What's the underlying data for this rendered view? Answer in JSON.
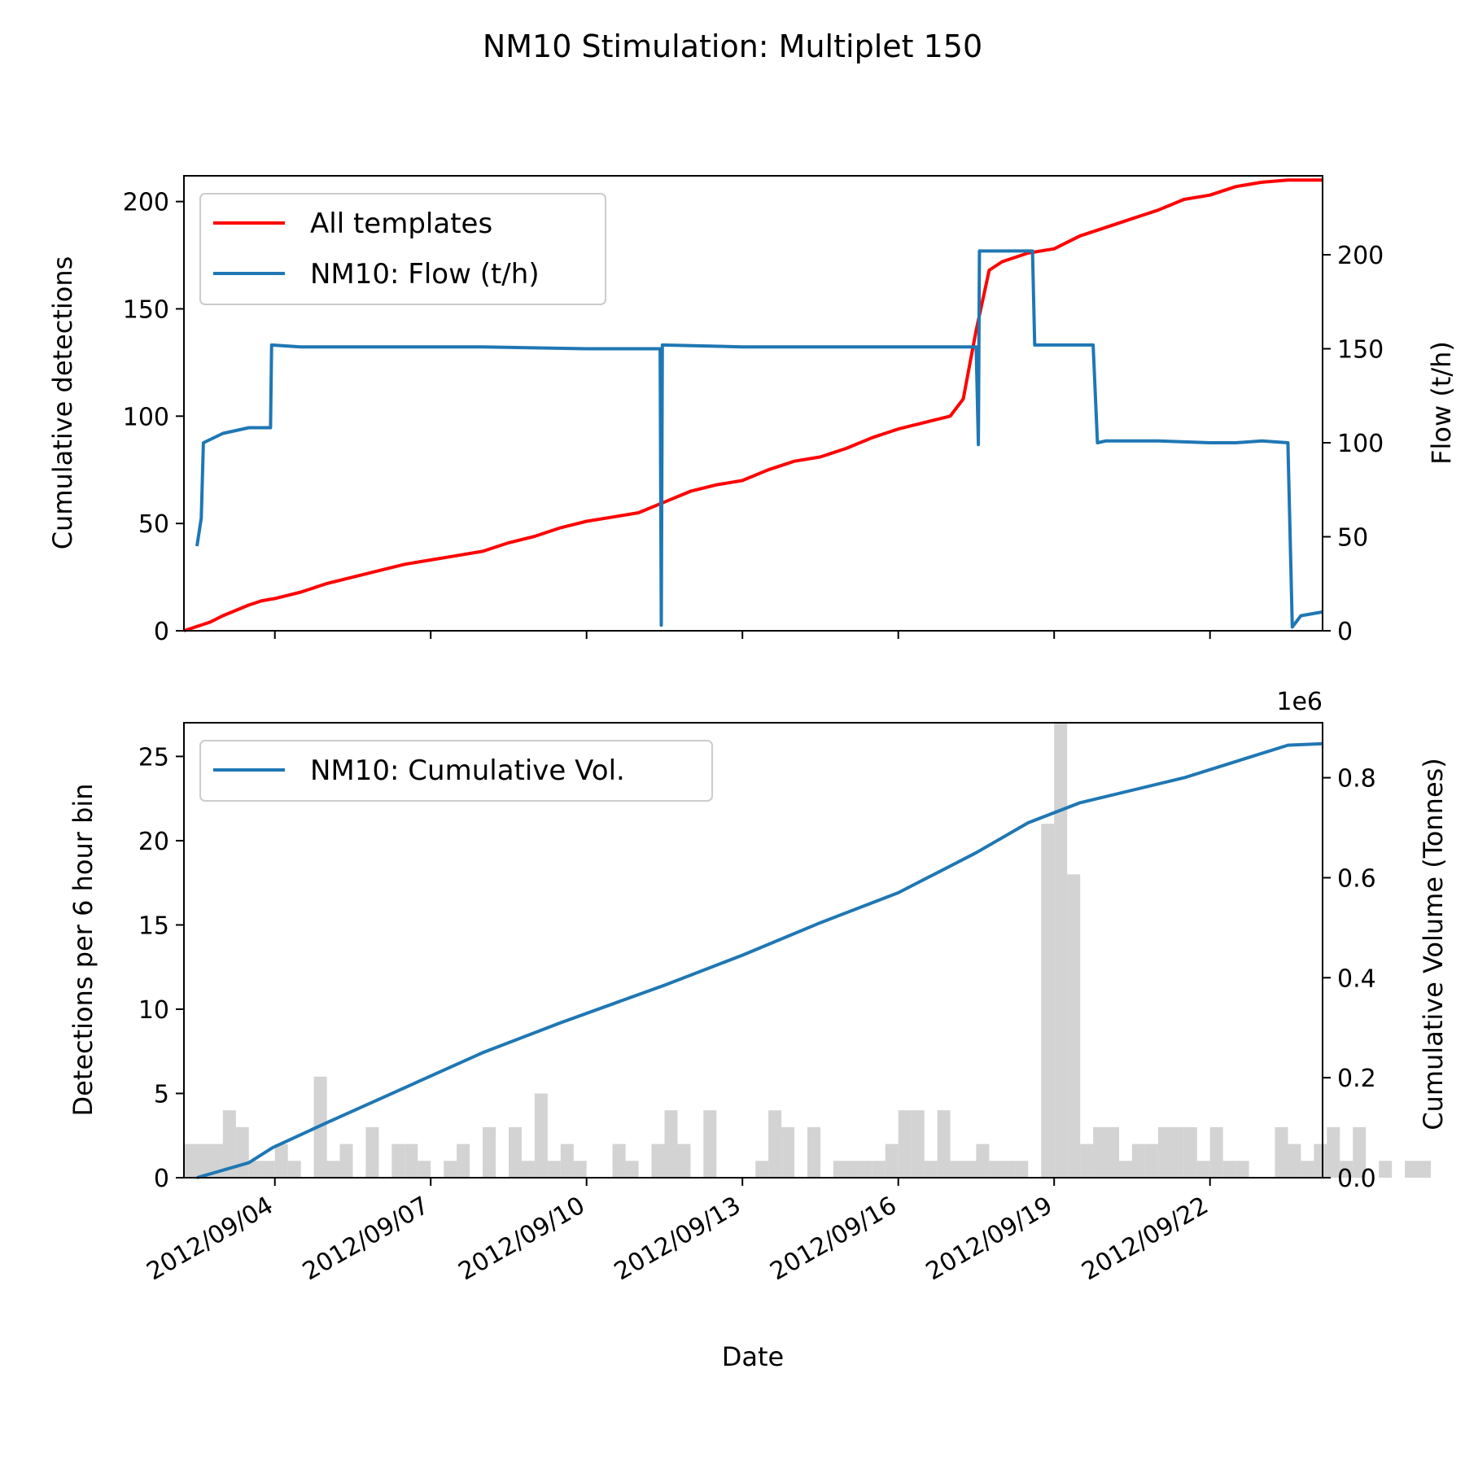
{
  "chart_data": [
    {
      "type": "line",
      "title": "NM10 Stimulation: Multiplet 150",
      "ylabel": "Cumulative detections",
      "y2label": "Flow (t/h)",
      "ylim": [
        0,
        212
      ],
      "y2lim": [
        0,
        242
      ],
      "xlim": [
        "2012/09/02 06:00",
        "2012/09/24 04:00"
      ],
      "yticks": [
        0,
        50,
        100,
        150,
        200
      ],
      "y2ticks": [
        0,
        50,
        100,
        150,
        200
      ],
      "legend": "top-left",
      "series": [
        {
          "name": "All templates",
          "axis": "left",
          "color": "#ff0000",
          "x": [
            "2012/09/02 06:00",
            "2012/09/02 18:00",
            "2012/09/03 00:00",
            "2012/09/03 12:00",
            "2012/09/03 18:00",
            "2012/09/04 00:00",
            "2012/09/04 12:00",
            "2012/09/05 00:00",
            "2012/09/05 12:00",
            "2012/09/06 00:00",
            "2012/09/06 12:00",
            "2012/09/07 00:00",
            "2012/09/07 12:00",
            "2012/09/08 00:00",
            "2012/09/08 12:00",
            "2012/09/09 00:00",
            "2012/09/09 12:00",
            "2012/09/10 00:00",
            "2012/09/10 12:00",
            "2012/09/11 00:00",
            "2012/09/11 12:00",
            "2012/09/12 00:00",
            "2012/09/12 12:00",
            "2012/09/13 00:00",
            "2012/09/13 12:00",
            "2012/09/14 00:00",
            "2012/09/14 12:00",
            "2012/09/15 00:00",
            "2012/09/15 12:00",
            "2012/09/16 00:00",
            "2012/09/16 12:00",
            "2012/09/17 00:00",
            "2012/09/17 06:00",
            "2012/09/17 12:00",
            "2012/09/17 18:00",
            "2012/09/18 00:00",
            "2012/09/18 12:00",
            "2012/09/19 00:00",
            "2012/09/19 12:00",
            "2012/09/20 00:00",
            "2012/09/20 12:00",
            "2012/09/21 00:00",
            "2012/09/21 12:00",
            "2012/09/22 00:00",
            "2012/09/22 12:00",
            "2012/09/23 00:00",
            "2012/09/23 12:00",
            "2012/09/24 04:00"
          ],
          "values": [
            0,
            4,
            7,
            12,
            14,
            15,
            18,
            22,
            25,
            28,
            31,
            33,
            35,
            37,
            41,
            44,
            48,
            51,
            53,
            55,
            60,
            65,
            68,
            70,
            75,
            79,
            81,
            85,
            90,
            94,
            97,
            100,
            108,
            140,
            168,
            172,
            176,
            178,
            184,
            188,
            192,
            196,
            201,
            203,
            207,
            209,
            210,
            210
          ]
        },
        {
          "name": "NM10: Flow (t/h)",
          "axis": "right",
          "color": "#1f77b4",
          "x": [
            "2012/09/02 12:00",
            "2012/09/02 14:00",
            "2012/09/02 15:00",
            "2012/09/03 00:00",
            "2012/09/03 12:00",
            "2012/09/03 22:00",
            "2012/09/03 22:30",
            "2012/09/04 12:00",
            "2012/09/06 00:00",
            "2012/09/08 00:00",
            "2012/09/10 00:00",
            "2012/09/11 00:00",
            "2012/09/11 10:00",
            "2012/09/11 10:30",
            "2012/09/11 11:00",
            "2012/09/13 00:00",
            "2012/09/15 00:00",
            "2012/09/17 00:00",
            "2012/09/17 12:00",
            "2012/09/17 13:00",
            "2012/09/17 13:30",
            "2012/09/17 14:00",
            "2012/09/18 00:00",
            "2012/09/18 14:00",
            "2012/09/18 15:00",
            "2012/09/19 12:00",
            "2012/09/19 18:00",
            "2012/09/19 20:00",
            "2012/09/20 00:00",
            "2012/09/21 00:00",
            "2012/09/22 00:00",
            "2012/09/22 12:00",
            "2012/09/23 00:00",
            "2012/09/23 12:00",
            "2012/09/23 14:00",
            "2012/09/23 18:00",
            "2012/09/24 04:00"
          ],
          "values": [
            45,
            60,
            100,
            105,
            108,
            108,
            152,
            151,
            151,
            151,
            150,
            150,
            150,
            3,
            152,
            151,
            151,
            151,
            151,
            99,
            202,
            202,
            202,
            202,
            152,
            152,
            152,
            100,
            101,
            101,
            100,
            100,
            101,
            100,
            2,
            8,
            10
          ]
        }
      ]
    },
    {
      "type": "bar",
      "xlabel": "Date",
      "ylabel": "Detections per 6 hour bin",
      "y2label": "Cumulative Volume (Tonnes)",
      "ylim": [
        0,
        27
      ],
      "y2lim": [
        0,
        0.91
      ],
      "y2_offset_label": "1e6",
      "yticks": [
        0,
        5,
        10,
        15,
        20,
        25
      ],
      "y2ticks": [
        "0.0",
        "0.2",
        "0.4",
        "0.6",
        "0.8"
      ],
      "xticks": [
        "2012/09/04",
        "2012/09/07",
        "2012/09/10",
        "2012/09/13",
        "2012/09/16",
        "2012/09/19",
        "2012/09/22"
      ],
      "legend": "top-left",
      "bar_color": "#d3d3d3",
      "bins": {
        "start": "2012/09/02 06:00",
        "width_hours": 6,
        "values": [
          2,
          2,
          2,
          4,
          3,
          1,
          1,
          2,
          1,
          0,
          6,
          1,
          2,
          0,
          3,
          0,
          2,
          2,
          1,
          0,
          1,
          2,
          0,
          3,
          0,
          3,
          1,
          5,
          1,
          2,
          1,
          0,
          0,
          2,
          1,
          0,
          2,
          4,
          2,
          0,
          4,
          0,
          0,
          0,
          1,
          4,
          3,
          0,
          3,
          0,
          1,
          1,
          1,
          1,
          2,
          4,
          4,
          1,
          4,
          1,
          1,
          2,
          1,
          1,
          1,
          0,
          21,
          27,
          18,
          2,
          3,
          3,
          1,
          2,
          2,
          3,
          3,
          3,
          1,
          3,
          1,
          1,
          0,
          0,
          3,
          2,
          1,
          2,
          3,
          1,
          3,
          0,
          1,
          0,
          1,
          1
        ]
      },
      "series": [
        {
          "name": "NM10: Cumulative Vol.",
          "axis": "right",
          "color": "#1f77b4",
          "x": [
            "2012/09/02 12:00",
            "2012/09/03 12:00",
            "2012/09/03 23:00",
            "2012/09/05 00:00",
            "2012/09/06 12:00",
            "2012/09/08 00:00",
            "2012/09/09 12:00",
            "2012/09/11 12:00",
            "2012/09/13 00:00",
            "2012/09/14 12:00",
            "2012/09/16 00:00",
            "2012/09/17 12:00",
            "2012/09/18 12:00",
            "2012/09/19 12:00",
            "2012/09/21 12:00",
            "2012/09/23 12:00",
            "2012/09/24 04:00"
          ],
          "values": [
            0,
            0.03,
            0.06,
            0.11,
            0.18,
            0.25,
            0.31,
            0.385,
            0.445,
            0.51,
            0.57,
            0.65,
            0.71,
            0.75,
            0.8,
            0.865,
            0.868
          ]
        }
      ]
    }
  ]
}
